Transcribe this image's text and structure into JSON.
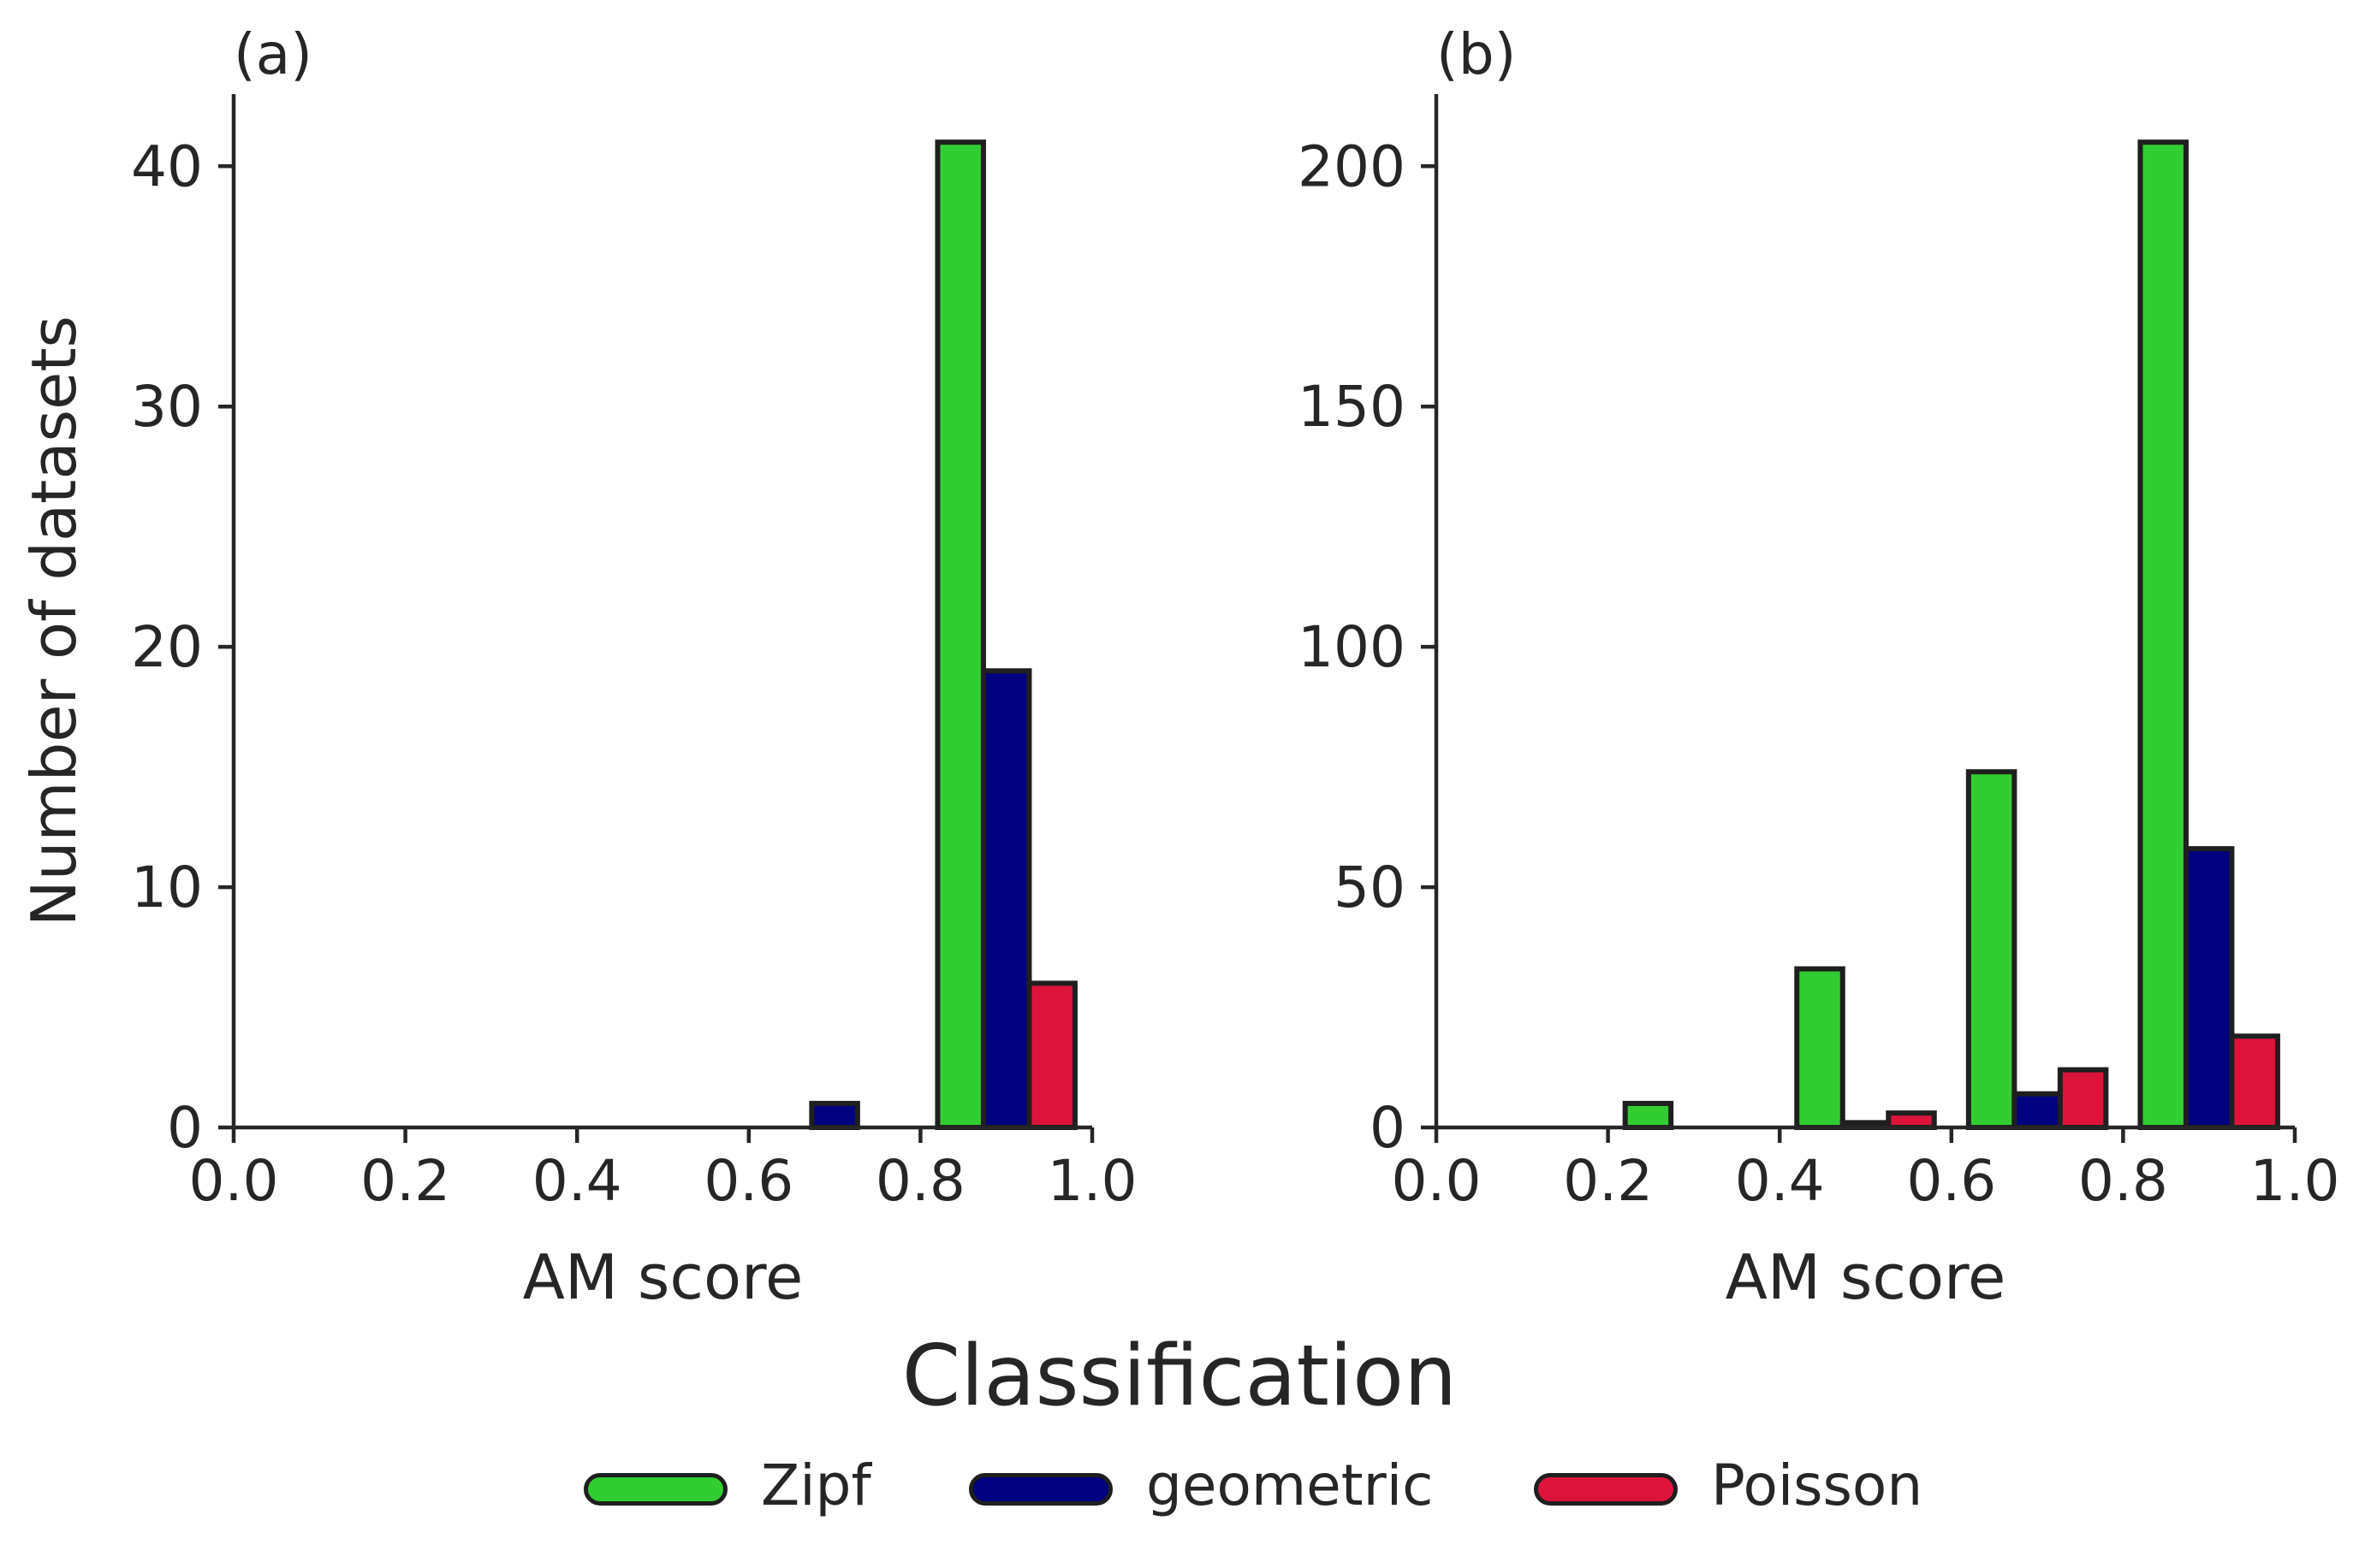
{
  "chart_data": [
    {
      "type": "bar",
      "panel_label": "(a)",
      "xlabel": "AM score",
      "ylabel": "Number of datasets",
      "xlim": [
        0.0,
        1.0
      ],
      "ylim": [
        0,
        43
      ],
      "xticks": [
        0.0,
        0.2,
        0.4,
        0.6,
        0.8,
        1.0
      ],
      "xtick_labels": [
        "0.0",
        "0.2",
        "0.4",
        "0.6",
        "0.8",
        "1.0"
      ],
      "yticks": [
        0,
        10,
        20,
        30,
        40
      ],
      "ytick_labels": [
        "0",
        "10",
        "20",
        "30",
        "40"
      ],
      "bin_edges": [
        0.0,
        0.2,
        0.4,
        0.6,
        0.8,
        1.0
      ],
      "series": [
        {
          "name": "Zipf",
          "color": "#32cd32",
          "values": [
            0,
            0,
            0,
            0,
            41
          ]
        },
        {
          "name": "geometric",
          "color": "#000080",
          "values": [
            0,
            0,
            0,
            1,
            19
          ]
        },
        {
          "name": "Poisson",
          "color": "#dc143c",
          "values": [
            0,
            0,
            0,
            0,
            6
          ]
        }
      ]
    },
    {
      "type": "bar",
      "panel_label": "(b)",
      "xlabel": "AM score",
      "ylabel": "",
      "xlim": [
        0.0,
        1.0
      ],
      "ylim": [
        0,
        215
      ],
      "xticks": [
        0.0,
        0.2,
        0.4,
        0.6,
        0.8,
        1.0
      ],
      "xtick_labels": [
        "0.0",
        "0.2",
        "0.4",
        "0.6",
        "0.8",
        "1.0"
      ],
      "yticks": [
        0,
        50,
        100,
        150,
        200
      ],
      "ytick_labels": [
        "0",
        "50",
        "100",
        "150",
        "200"
      ],
      "bin_edges": [
        0.0,
        0.2,
        0.4,
        0.6,
        0.8,
        1.0
      ],
      "series": [
        {
          "name": "Zipf",
          "color": "#32cd32",
          "values": [
            0,
            5,
            33,
            74,
            205
          ]
        },
        {
          "name": "geometric",
          "color": "#000080",
          "values": [
            0,
            0,
            1,
            7,
            58
          ]
        },
        {
          "name": "Poisson",
          "color": "#dc143c",
          "values": [
            0,
            0,
            3,
            12,
            19
          ]
        }
      ]
    }
  ],
  "legend": {
    "title": "Classification",
    "placement": "bottom-center",
    "items": [
      {
        "label": "Zipf",
        "color": "#32cd32"
      },
      {
        "label": "geometric",
        "color": "#000080"
      },
      {
        "label": "Poisson",
        "color": "#dc143c"
      }
    ]
  }
}
